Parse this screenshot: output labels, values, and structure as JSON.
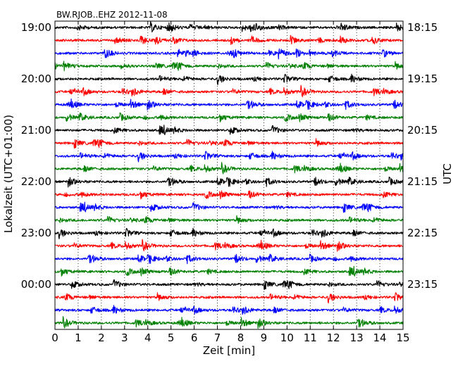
{
  "chart_data": {
    "type": "line",
    "title": "BW.RJOB..EHZ 2012-11-08",
    "xlabel": "Zeit  [min]",
    "ylabel_left": "Lokalzeit (UTC+01:00)",
    "ylabel_right": "UTC",
    "xlim": [
      0,
      15
    ],
    "x_ticks": [
      0,
      1,
      2,
      3,
      4,
      5,
      6,
      7,
      8,
      9,
      10,
      11,
      12,
      13,
      14,
      15
    ],
    "x_tick_labels": [
      "0",
      "1",
      "2",
      "3",
      "4",
      "5",
      "6",
      "7",
      "8",
      "9",
      "10",
      "11",
      "12",
      "13",
      "14",
      "15"
    ],
    "trace_count": 24,
    "trace_interval_minutes": 15,
    "trace_colors": [
      "#000000",
      "#ff0000",
      "#0000ff",
      "#008000"
    ],
    "left_labels": [
      {
        "trace": 0,
        "text": "19:00"
      },
      {
        "trace": 4,
        "text": "20:00"
      },
      {
        "trace": 8,
        "text": "21:00"
      },
      {
        "trace": 12,
        "text": "22:00"
      },
      {
        "trace": 16,
        "text": "23:00"
      },
      {
        "trace": 20,
        "text": "00:00"
      }
    ],
    "right_labels": [
      {
        "trace": 0,
        "text": "18:15"
      },
      {
        "trace": 4,
        "text": "19:15"
      },
      {
        "trace": 8,
        "text": "20:15"
      },
      {
        "trace": 12,
        "text": "21:15"
      },
      {
        "trace": 16,
        "text": "22:15"
      },
      {
        "trace": 20,
        "text": "23:15"
      }
    ],
    "grid": {
      "x": "dotted",
      "y": false
    },
    "legend": "none"
  }
}
